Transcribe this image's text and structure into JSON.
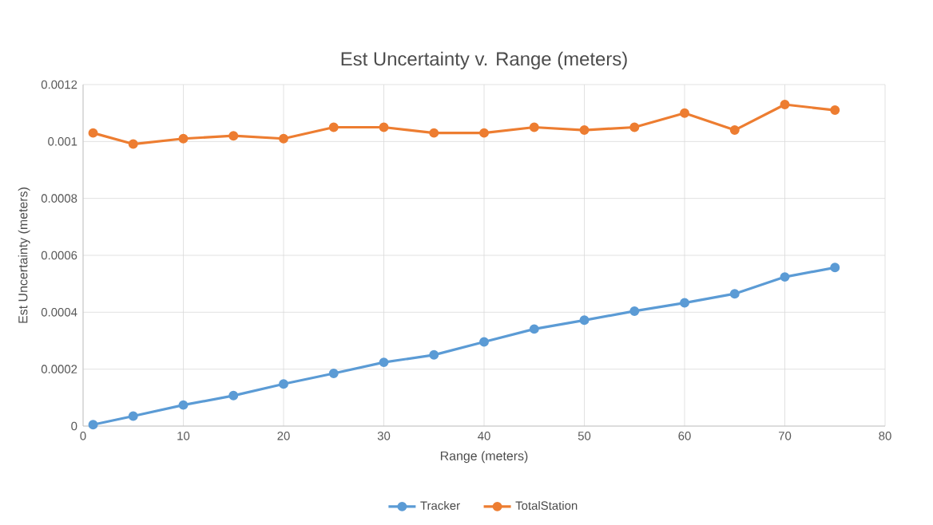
{
  "chart_data": {
    "type": "line",
    "title": "Est Uncertainty v. Range (meters)",
    "xlabel": "Range (meters)",
    "ylabel": "Est Uncertainty (meters)",
    "x": [
      1,
      5,
      10,
      15,
      20,
      25,
      30,
      35,
      40,
      45,
      50,
      55,
      60,
      65,
      70,
      75
    ],
    "series": [
      {
        "name": "Tracker",
        "color": "#5b9bd5",
        "values": [
          5e-06,
          3.5e-05,
          7.4e-05,
          0.000107,
          0.000148,
          0.000185,
          0.000224,
          0.00025,
          0.000296,
          0.000341,
          0.000372,
          0.000404,
          0.000433,
          0.000465,
          0.000524,
          0.000557
        ]
      },
      {
        "name": "TotalStation",
        "color": "#ed7d31",
        "values": [
          0.00103,
          0.000991,
          0.00101,
          0.00102,
          0.00101,
          0.00105,
          0.00105,
          0.00103,
          0.00103,
          0.00105,
          0.00104,
          0.00105,
          0.0011,
          0.00104,
          0.00113,
          0.00111
        ]
      }
    ],
    "xlim": [
      0,
      80
    ],
    "xticks": [
      0,
      10,
      20,
      30,
      40,
      50,
      60,
      70,
      80
    ],
    "ylim": [
      0,
      0.0012
    ],
    "yticks": [
      0,
      0.0002,
      0.0004,
      0.0006,
      0.0008,
      0.001,
      0.0012
    ],
    "grid": true,
    "legend": "bottom",
    "marker": "circle",
    "line_style": "solid"
  }
}
